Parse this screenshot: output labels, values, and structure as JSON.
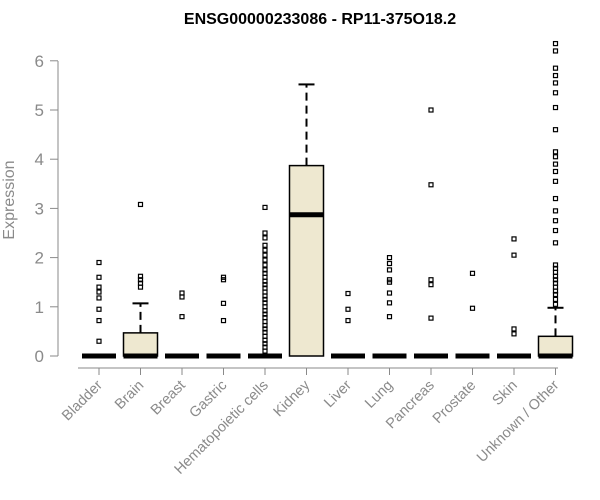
{
  "chart_data": {
    "type": "boxplot",
    "title": "ENSG00000233086 - RP11-375O18.2",
    "xlabel": "",
    "ylabel": "Expression",
    "ylim": [
      0,
      6.4
    ],
    "yticks": [
      0,
      1,
      2,
      3,
      4,
      5,
      6
    ],
    "grid": false,
    "legend": "none",
    "colors": {
      "box_fill": "#EEE8D0",
      "stroke": "#000000",
      "axis_text": "#8a8a8a"
    },
    "categories": [
      "Bladder",
      "Brain",
      "Breast",
      "Gastric",
      "Hematopoietic cells",
      "Kidney",
      "Liver",
      "Lung",
      "Pancreas",
      "Prostate",
      "Skin",
      "Unknown / Other"
    ],
    "boxes": [
      {
        "category": "Bladder",
        "q1": 0,
        "median": 0,
        "q3": 0,
        "whisker_low": 0,
        "whisker_high": 0,
        "outliers": [
          0.3,
          0.72,
          0.95,
          1.18,
          1.3,
          1.4,
          1.6,
          1.9
        ]
      },
      {
        "category": "Brain",
        "q1": 0,
        "median": 0,
        "q3": 0.47,
        "whisker_low": 0,
        "whisker_high": 1.07,
        "outliers": [
          1.4,
          1.48,
          1.55,
          1.62,
          3.08
        ]
      },
      {
        "category": "Breast",
        "q1": 0,
        "median": 0,
        "q3": 0,
        "whisker_low": 0,
        "whisker_high": 0,
        "outliers": [
          0.8,
          1.2,
          1.28
        ]
      },
      {
        "category": "Gastric",
        "q1": 0,
        "median": 0,
        "q3": 0,
        "whisker_low": 0,
        "whisker_high": 0,
        "outliers": [
          0.72,
          1.07,
          1.55,
          1.6
        ]
      },
      {
        "category": "Hematopoietic cells",
        "q1": 0,
        "median": 0,
        "q3": 0,
        "whisker_low": 0,
        "whisker_high": 0,
        "outliers": [
          0.1,
          0.18,
          0.25,
          0.32,
          0.4,
          0.48,
          0.55,
          0.62,
          0.7,
          0.78,
          0.85,
          0.92,
          1.0,
          1.08,
          1.15,
          1.22,
          1.3,
          1.38,
          1.45,
          1.52,
          1.6,
          1.68,
          1.75,
          1.85,
          1.95,
          2.05,
          2.15,
          2.25,
          2.4,
          2.5,
          3.02
        ]
      },
      {
        "category": "Kidney",
        "q1": 0,
        "median": 2.87,
        "q3": 3.87,
        "whisker_low": 0,
        "whisker_high": 5.52,
        "outliers": []
      },
      {
        "category": "Liver",
        "q1": 0,
        "median": 0,
        "q3": 0,
        "whisker_low": 0,
        "whisker_high": 0,
        "outliers": [
          0.72,
          0.95,
          1.27
        ]
      },
      {
        "category": "Lung",
        "q1": 0,
        "median": 0,
        "q3": 0,
        "whisker_low": 0,
        "whisker_high": 0,
        "outliers": [
          0.8,
          1.08,
          1.28,
          1.5,
          1.55,
          1.75,
          1.88,
          2.0
        ]
      },
      {
        "category": "Pancreas",
        "q1": 0,
        "median": 0,
        "q3": 0,
        "whisker_low": 0,
        "whisker_high": 0,
        "outliers": [
          0.77,
          1.45,
          1.55,
          3.48,
          5.0
        ]
      },
      {
        "category": "Prostate",
        "q1": 0,
        "median": 0,
        "q3": 0,
        "whisker_low": 0,
        "whisker_high": 0,
        "outliers": [
          0.97,
          1.68
        ]
      },
      {
        "category": "Skin",
        "q1": 0,
        "median": 0,
        "q3": 0,
        "whisker_low": 0,
        "whisker_high": 0,
        "outliers": [
          0.45,
          0.55,
          2.05,
          2.38
        ]
      },
      {
        "category": "Unknown / Other",
        "q1": 0,
        "median": 0,
        "q3": 0.4,
        "whisker_low": 0,
        "whisker_high": 0.98,
        "outliers": [
          1.05,
          1.15,
          1.25,
          1.32,
          1.4,
          1.48,
          1.55,
          1.62,
          1.7,
          1.78,
          1.85,
          2.3,
          2.55,
          2.75,
          2.95,
          3.2,
          3.55,
          3.75,
          3.9,
          4.05,
          4.15,
          4.6,
          5.05,
          5.35,
          5.55,
          5.7,
          5.85,
          6.2,
          6.35
        ]
      }
    ]
  }
}
